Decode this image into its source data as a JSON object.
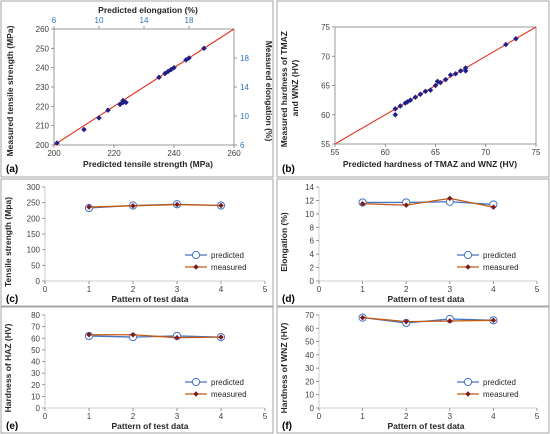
{
  "chart_data": [
    {
      "panel": "(a)",
      "type": "scatter",
      "xlabel": "Predicted tensile strength (MPa)",
      "ylabel": "Measured tensile strength (MPa)",
      "x2label": "Predicted elongation (%)",
      "y2label": "Measured elongation (%)",
      "xlim": [
        200,
        260
      ],
      "ylim": [
        200,
        260
      ],
      "xticks": [
        "200",
        "220",
        "240",
        "260"
      ],
      "yticks": [
        "200",
        "210",
        "220",
        "230",
        "240",
        "250",
        "260"
      ],
      "x2lim": [
        6,
        22
      ],
      "y2lim": [
        6,
        22
      ],
      "x2ticks": [
        "6",
        "10",
        "14",
        "18"
      ],
      "y2ticks": [
        "6",
        "10",
        "14",
        "18"
      ],
      "grid": false,
      "series": [
        {
          "x": [
            201,
            210,
            215,
            218,
            222,
            223,
            223,
            224,
            235,
            237,
            238,
            239,
            240,
            244,
            245,
            250
          ],
          "y": [
            201,
            208,
            214,
            218,
            221,
            222,
            223,
            222,
            235,
            237,
            238,
            239,
            240,
            244,
            245,
            250
          ]
        }
      ]
    },
    {
      "panel": "(b)",
      "type": "scatter",
      "xlabel": "Predicted hardness of TMAZ and WNZ  (HV)",
      "ylabel": "Measured hardness of TMAZ and WNZ (HV)",
      "xlim": [
        55,
        75
      ],
      "ylim": [
        55,
        75
      ],
      "xticks": [
        "55",
        "60",
        "65",
        "70",
        "75"
      ],
      "yticks": [
        "55",
        "60",
        "65",
        "70",
        "75"
      ],
      "grid": false,
      "series": [
        {
          "x": [
            61,
            61,
            61.5,
            62,
            62.2,
            62.5,
            63,
            63.5,
            64,
            64.5,
            65,
            65.2,
            65.5,
            66,
            66.5,
            67,
            67.5,
            68,
            68,
            72,
            73
          ],
          "y": [
            60,
            61,
            61.5,
            62,
            62.2,
            62.5,
            63,
            63.5,
            64,
            64.2,
            65,
            65.7,
            65.5,
            66,
            66.8,
            67,
            67.5,
            67.5,
            68,
            72,
            73
          ]
        }
      ]
    },
    {
      "panel": "(c)",
      "type": "line",
      "xlabel": "Pattern of test data",
      "ylabel": "Tensile strength (Mpa)",
      "xlim": [
        0,
        5
      ],
      "ylim": [
        0,
        300
      ],
      "xticks": [
        "0",
        "1",
        "2",
        "3",
        "4",
        "5"
      ],
      "yticks": [
        "0",
        "50",
        "100",
        "150",
        "200",
        "250",
        "300"
      ],
      "legend": "bottom-right",
      "categories": [
        1,
        2,
        3,
        4
      ],
      "series": [
        {
          "name": "predicted",
          "values": [
            233,
            241,
            245,
            241
          ]
        },
        {
          "name": "measured",
          "values": [
            236,
            240,
            244,
            241
          ]
        }
      ]
    },
    {
      "panel": "(d)",
      "type": "line",
      "xlabel": "Pattern of test data",
      "ylabel": "Elongation (%)",
      "xlim": [
        0,
        5
      ],
      "ylim": [
        0,
        14
      ],
      "xticks": [
        "0",
        "1",
        "2",
        "3",
        "4",
        "5"
      ],
      "yticks": [
        "0",
        "2",
        "4",
        "6",
        "8",
        "10",
        "12",
        "14"
      ],
      "legend": "bottom-right",
      "categories": [
        1,
        2,
        3,
        4
      ],
      "series": [
        {
          "name": "predicted",
          "values": [
            11.7,
            11.7,
            11.8,
            11.4
          ]
        },
        {
          "name": "measured",
          "values": [
            11.5,
            11.3,
            12.3,
            11.0
          ]
        }
      ]
    },
    {
      "panel": "(e)",
      "type": "line",
      "xlabel": "Pattern of test data",
      "ylabel": "Hardness of HAZ (HV)",
      "xlim": [
        0,
        5
      ],
      "ylim": [
        0,
        80
      ],
      "xticks": [
        "0",
        "1",
        "2",
        "3",
        "4",
        "5"
      ],
      "yticks": [
        "0",
        "10",
        "20",
        "30",
        "40",
        "50",
        "60",
        "70",
        "80"
      ],
      "legend": "bottom-right",
      "categories": [
        1,
        2,
        3,
        4
      ],
      "series": [
        {
          "name": "predicted",
          "values": [
            62,
            61,
            62,
            61
          ]
        },
        {
          "name": "measured",
          "values": [
            63,
            63,
            60.5,
            61
          ]
        }
      ]
    },
    {
      "panel": "(f)",
      "type": "line",
      "xlabel": "Pattern of test data",
      "ylabel": "Hardness of WNZ (HV)",
      "xlim": [
        0,
        5
      ],
      "ylim": [
        0,
        70
      ],
      "xticks": [
        "0",
        "1",
        "2",
        "3",
        "4",
        "5"
      ],
      "yticks": [
        "0",
        "10",
        "20",
        "30",
        "40",
        "50",
        "60",
        "70"
      ],
      "legend": "bottom-right",
      "categories": [
        1,
        2,
        3,
        4
      ],
      "series": [
        {
          "name": "predicted",
          "values": [
            68,
            64,
            67,
            66
          ]
        },
        {
          "name": "measured",
          "values": [
            68,
            65,
            65.5,
            66
          ]
        }
      ]
    }
  ],
  "colors": {
    "scatter_marker": "#1f1f8a",
    "identity_line": "#e8311f",
    "predicted_line": "#4472c4",
    "measured_line": "#c55a11",
    "measured_marker": "#7b1c1c",
    "secondary_axis": "#2e75b6",
    "frame": "#a6a6a6"
  }
}
